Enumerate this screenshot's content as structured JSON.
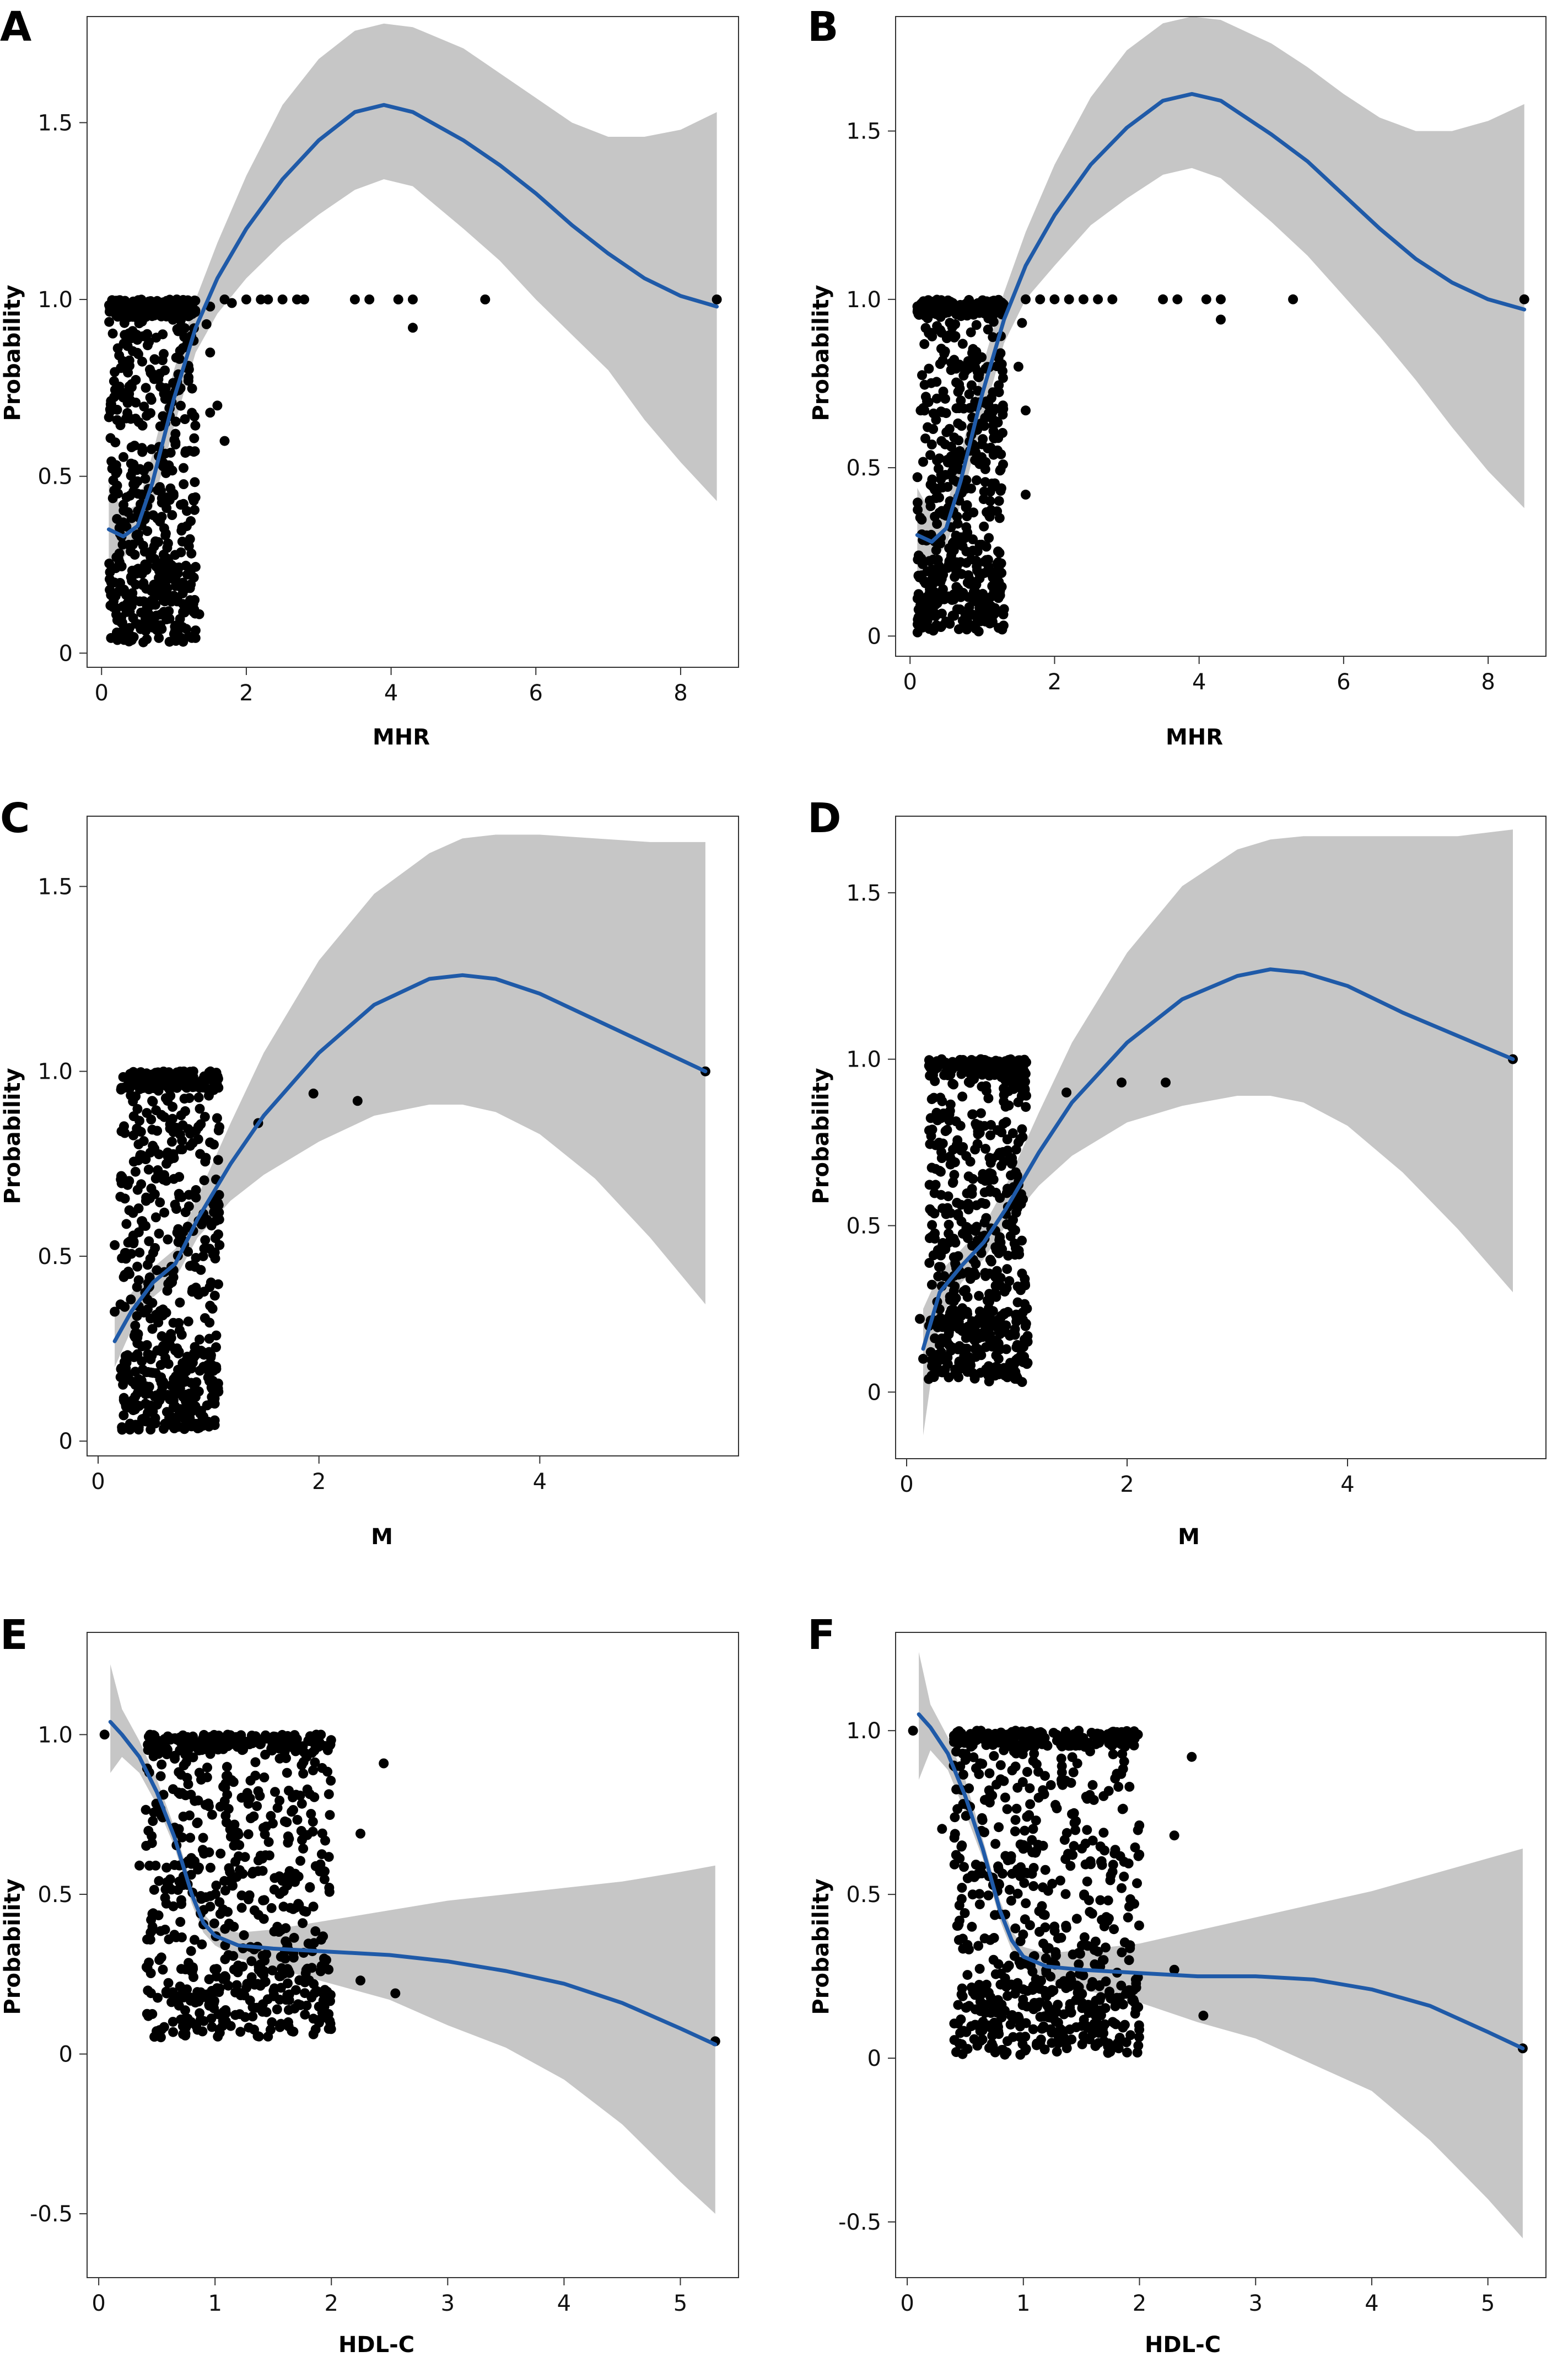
{
  "chart_data": [
    {
      "panel": "A",
      "type": "scatter",
      "xlabel": "MHR",
      "ylabel": "Probability",
      "xlim": [
        -0.2,
        8.8
      ],
      "ylim": [
        -0.04,
        1.8
      ],
      "xticks": [
        0,
        2,
        4,
        6,
        8
      ],
      "yticks": [
        0,
        0.5,
        1.0,
        1.5
      ],
      "ytick_labels": [
        "0",
        "0.5",
        "1.0",
        "1.5"
      ],
      "fit_line": {
        "x": [
          0.1,
          0.3,
          0.5,
          0.7,
          1.0,
          1.3,
          1.6,
          2.0,
          2.5,
          3.0,
          3.5,
          3.9,
          4.3,
          5.0,
          5.5,
          6.0,
          6.5,
          7.0,
          7.5,
          8.0,
          8.5
        ],
        "y": [
          0.35,
          0.33,
          0.36,
          0.48,
          0.72,
          0.92,
          1.06,
          1.2,
          1.34,
          1.45,
          1.53,
          1.55,
          1.53,
          1.45,
          1.38,
          1.3,
          1.21,
          1.13,
          1.06,
          1.01,
          0.98
        ]
      },
      "ci_upper": [
        0.48,
        0.4,
        0.42,
        0.56,
        0.8,
        1.0,
        1.16,
        1.35,
        1.55,
        1.68,
        1.76,
        1.78,
        1.77,
        1.71,
        1.64,
        1.57,
        1.5,
        1.46,
        1.46,
        1.48,
        1.53
      ],
      "ci_lower": [
        0.22,
        0.27,
        0.31,
        0.41,
        0.64,
        0.85,
        0.96,
        1.06,
        1.16,
        1.24,
        1.31,
        1.34,
        1.32,
        1.2,
        1.11,
        1.0,
        0.9,
        0.8,
        0.66,
        0.54,
        0.43
      ],
      "cluster": {
        "x": [
          0.1,
          1.3
        ],
        "y": [
          0.03,
          1.0
        ],
        "n": 650
      },
      "outliers": [
        [
          1.7,
          0.6
        ],
        [
          1.5,
          0.68
        ],
        [
          1.6,
          0.7
        ],
        [
          1.35,
          0.11
        ],
        [
          1.2,
          0.77
        ],
        [
          1.5,
          0.85
        ],
        [
          1.45,
          0.93
        ],
        [
          1.5,
          0.98
        ],
        [
          1.7,
          1.0
        ],
        [
          1.8,
          0.99
        ],
        [
          2.0,
          1.0
        ],
        [
          2.2,
          1.0
        ],
        [
          2.3,
          1.0
        ],
        [
          2.5,
          1.0
        ],
        [
          2.7,
          1.0
        ],
        [
          2.8,
          1.0
        ],
        [
          3.5,
          1.0
        ],
        [
          3.7,
          1.0
        ],
        [
          4.1,
          1.0
        ],
        [
          4.3,
          1.0
        ],
        [
          4.3,
          0.92
        ],
        [
          5.3,
          1.0
        ],
        [
          8.5,
          1.0
        ]
      ]
    },
    {
      "panel": "B",
      "type": "scatter",
      "xlabel": "MHR",
      "ylabel": "Probability",
      "xlim": [
        -0.2,
        8.8
      ],
      "ylim": [
        -0.06,
        1.84
      ],
      "xticks": [
        0,
        2,
        4,
        6,
        8
      ],
      "yticks": [
        0,
        0.5,
        1.0,
        1.5
      ],
      "ytick_labels": [
        "0",
        "0.5",
        "1.0",
        "1.5"
      ],
      "fit_line": {
        "x": [
          0.1,
          0.3,
          0.5,
          0.7,
          1.0,
          1.3,
          1.6,
          2.0,
          2.5,
          3.0,
          3.5,
          3.9,
          4.3,
          5.0,
          5.5,
          6.0,
          6.5,
          7.0,
          7.5,
          8.0,
          8.5
        ],
        "y": [
          0.3,
          0.28,
          0.32,
          0.46,
          0.72,
          0.94,
          1.1,
          1.25,
          1.4,
          1.51,
          1.59,
          1.61,
          1.59,
          1.49,
          1.41,
          1.31,
          1.21,
          1.12,
          1.05,
          1.0,
          0.97
        ]
      },
      "ci_upper": [
        0.44,
        0.36,
        0.38,
        0.54,
        0.8,
        1.02,
        1.2,
        1.4,
        1.6,
        1.74,
        1.82,
        1.84,
        1.83,
        1.76,
        1.69,
        1.61,
        1.54,
        1.5,
        1.5,
        1.53,
        1.58
      ],
      "ci_lower": [
        0.16,
        0.22,
        0.27,
        0.39,
        0.64,
        0.87,
        1.0,
        1.1,
        1.22,
        1.3,
        1.37,
        1.39,
        1.36,
        1.23,
        1.13,
        1.01,
        0.89,
        0.76,
        0.62,
        0.49,
        0.38
      ],
      "cluster": {
        "x": [
          0.1,
          1.3
        ],
        "y": [
          0.01,
          1.0
        ],
        "n": 650
      },
      "outliers": [
        [
          1.6,
          0.67
        ],
        [
          1.6,
          0.42
        ],
        [
          1.3,
          0.08
        ],
        [
          1.5,
          0.8
        ],
        [
          1.55,
          0.93
        ],
        [
          1.6,
          1.0
        ],
        [
          1.8,
          1.0
        ],
        [
          2.0,
          1.0
        ],
        [
          2.2,
          1.0
        ],
        [
          2.4,
          1.0
        ],
        [
          2.6,
          1.0
        ],
        [
          2.8,
          1.0
        ],
        [
          3.5,
          1.0
        ],
        [
          3.7,
          1.0
        ],
        [
          4.1,
          1.0
        ],
        [
          4.3,
          1.0
        ],
        [
          4.3,
          0.94
        ],
        [
          5.3,
          1.0
        ],
        [
          8.5,
          1.0
        ]
      ]
    },
    {
      "panel": "C",
      "type": "scatter",
      "xlabel": "M",
      "ylabel": "Probability",
      "xlim": [
        -0.1,
        5.8
      ],
      "ylim": [
        -0.04,
        1.69
      ],
      "xticks": [
        0,
        2,
        4
      ],
      "yticks": [
        0,
        0.5,
        1.0,
        1.5
      ],
      "ytick_labels": [
        "0",
        "0.5",
        "1.0",
        "1.5"
      ],
      "fit_line": {
        "x": [
          0.15,
          0.3,
          0.5,
          0.7,
          0.9,
          1.2,
          1.5,
          2.0,
          2.5,
          3.0,
          3.3,
          3.6,
          4.0,
          4.5,
          5.0,
          5.5
        ],
        "y": [
          0.27,
          0.35,
          0.43,
          0.48,
          0.6,
          0.75,
          0.88,
          1.05,
          1.18,
          1.25,
          1.26,
          1.25,
          1.21,
          1.14,
          1.07,
          1.0
        ]
      },
      "ci_upper": [
        0.34,
        0.4,
        0.47,
        0.52,
        0.66,
        0.86,
        1.05,
        1.3,
        1.48,
        1.59,
        1.63,
        1.64,
        1.64,
        1.63,
        1.62,
        1.62
      ],
      "ci_lower": [
        0.2,
        0.3,
        0.39,
        0.44,
        0.55,
        0.65,
        0.72,
        0.81,
        0.88,
        0.91,
        0.91,
        0.89,
        0.83,
        0.71,
        0.55,
        0.37
      ],
      "cluster": {
        "x": [
          0.2,
          1.1
        ],
        "y": [
          0.03,
          1.0
        ],
        "n": 650
      },
      "outliers": [
        [
          0.15,
          0.53
        ],
        [
          0.15,
          0.35
        ],
        [
          1.45,
          0.86
        ],
        [
          1.95,
          0.94
        ],
        [
          2.35,
          0.92
        ],
        [
          5.5,
          1.0
        ]
      ]
    },
    {
      "panel": "D",
      "type": "scatter",
      "xlabel": "M",
      "ylabel": "Probability",
      "xlim": [
        -0.1,
        5.8
      ],
      "ylim": [
        -0.2,
        1.73
      ],
      "xticks": [
        0,
        2,
        4
      ],
      "yticks": [
        0,
        0.5,
        1.0,
        1.5
      ],
      "ytick_labels": [
        "0",
        "0.5",
        "1.0",
        "1.5"
      ],
      "fit_line": {
        "x": [
          0.15,
          0.3,
          0.5,
          0.7,
          0.9,
          1.2,
          1.5,
          2.0,
          2.5,
          3.0,
          3.3,
          3.6,
          4.0,
          4.5,
          5.0,
          5.5
        ],
        "y": [
          0.13,
          0.3,
          0.38,
          0.45,
          0.55,
          0.72,
          0.87,
          1.05,
          1.18,
          1.25,
          1.27,
          1.26,
          1.22,
          1.14,
          1.07,
          1.0
        ]
      },
      "ci_upper": [
        0.25,
        0.36,
        0.43,
        0.5,
        0.62,
        0.84,
        1.05,
        1.32,
        1.52,
        1.63,
        1.66,
        1.67,
        1.67,
        1.67,
        1.67,
        1.69
      ],
      "ci_lower": [
        -0.13,
        0.22,
        0.33,
        0.4,
        0.5,
        0.62,
        0.71,
        0.81,
        0.86,
        0.89,
        0.89,
        0.87,
        0.8,
        0.66,
        0.49,
        0.3
      ],
      "cluster": {
        "x": [
          0.2,
          1.1
        ],
        "y": [
          0.03,
          1.0
        ],
        "n": 650
      },
      "outliers": [
        [
          0.12,
          0.22
        ],
        [
          0.15,
          0.1
        ],
        [
          1.45,
          0.9
        ],
        [
          1.95,
          0.93
        ],
        [
          2.35,
          0.93
        ],
        [
          5.5,
          1.0
        ]
      ]
    },
    {
      "panel": "E",
      "type": "scatter",
      "xlabel": "HDL-C",
      "ylabel": "Probability",
      "xlim": [
        -0.1,
        5.5
      ],
      "ylim": [
        -0.7,
        1.32
      ],
      "xticks": [
        0,
        1,
        2,
        3,
        4,
        5
      ],
      "yticks": [
        -0.5,
        0,
        0.5,
        1.0
      ],
      "ytick_labels": [
        "-0.5",
        "0",
        "0.5",
        "1.0"
      ],
      "fit_line": {
        "x": [
          0.1,
          0.2,
          0.35,
          0.5,
          0.65,
          0.8,
          0.9,
          1.0,
          1.2,
          1.5,
          2.0,
          2.5,
          3.0,
          3.5,
          4.0,
          4.5,
          5.0,
          5.3
        ],
        "y": [
          1.04,
          1.0,
          0.93,
          0.82,
          0.68,
          0.5,
          0.41,
          0.37,
          0.34,
          0.33,
          0.32,
          0.31,
          0.29,
          0.26,
          0.22,
          0.16,
          0.08,
          0.03
        ]
      },
      "ci_upper": [
        1.22,
        1.08,
        0.98,
        0.86,
        0.71,
        0.53,
        0.44,
        0.4,
        0.38,
        0.39,
        0.42,
        0.45,
        0.48,
        0.5,
        0.52,
        0.54,
        0.57,
        0.59
      ],
      "ci_lower": [
        0.88,
        0.93,
        0.88,
        0.78,
        0.65,
        0.47,
        0.38,
        0.34,
        0.3,
        0.27,
        0.22,
        0.17,
        0.09,
        0.02,
        -0.08,
        -0.22,
        -0.4,
        -0.5
      ],
      "cluster": {
        "x": [
          0.4,
          2.0
        ],
        "y": [
          0.05,
          1.0
        ],
        "n": 750
      },
      "outliers": [
        [
          0.05,
          1.0
        ],
        [
          0.35,
          0.59
        ],
        [
          0.45,
          0.42
        ],
        [
          2.25,
          0.69
        ],
        [
          2.45,
          0.91
        ],
        [
          2.25,
          0.23
        ],
        [
          2.55,
          0.19
        ],
        [
          5.3,
          0.04
        ]
      ]
    },
    {
      "panel": "F",
      "type": "scatter",
      "xlabel": "HDL-C",
      "ylabel": "Probability",
      "xlim": [
        -0.1,
        5.5
      ],
      "ylim": [
        -0.67,
        1.3
      ],
      "xticks": [
        0,
        1,
        2,
        3,
        4,
        5
      ],
      "yticks": [
        -0.5,
        0,
        0.5,
        1.0
      ],
      "ytick_labels": [
        "-0.5",
        "0",
        "0.5",
        "1.0"
      ],
      "fit_line": {
        "x": [
          0.1,
          0.2,
          0.35,
          0.5,
          0.65,
          0.8,
          0.9,
          1.0,
          1.2,
          1.5,
          2.0,
          2.5,
          3.0,
          3.5,
          4.0,
          4.5,
          5.0,
          5.3
        ],
        "y": [
          1.05,
          1.01,
          0.93,
          0.8,
          0.64,
          0.45,
          0.36,
          0.31,
          0.28,
          0.27,
          0.26,
          0.25,
          0.25,
          0.24,
          0.21,
          0.16,
          0.08,
          0.03
        ]
      },
      "ci_upper": [
        1.24,
        1.08,
        0.98,
        0.85,
        0.67,
        0.48,
        0.39,
        0.34,
        0.32,
        0.33,
        0.35,
        0.39,
        0.43,
        0.47,
        0.51,
        0.56,
        0.61,
        0.64
      ],
      "ci_lower": [
        0.85,
        0.94,
        0.88,
        0.75,
        0.61,
        0.42,
        0.33,
        0.28,
        0.24,
        0.21,
        0.17,
        0.11,
        0.06,
        -0.02,
        -0.1,
        -0.25,
        -0.43,
        -0.55
      ],
      "cluster": {
        "x": [
          0.4,
          2.0
        ],
        "y": [
          0.01,
          1.0
        ],
        "n": 750
      },
      "outliers": [
        [
          0.05,
          1.0
        ],
        [
          0.3,
          0.7
        ],
        [
          0.45,
          0.42
        ],
        [
          2.3,
          0.68
        ],
        [
          2.45,
          0.92
        ],
        [
          2.3,
          0.27
        ],
        [
          2.55,
          0.13
        ],
        [
          5.3,
          0.03
        ]
      ]
    }
  ]
}
